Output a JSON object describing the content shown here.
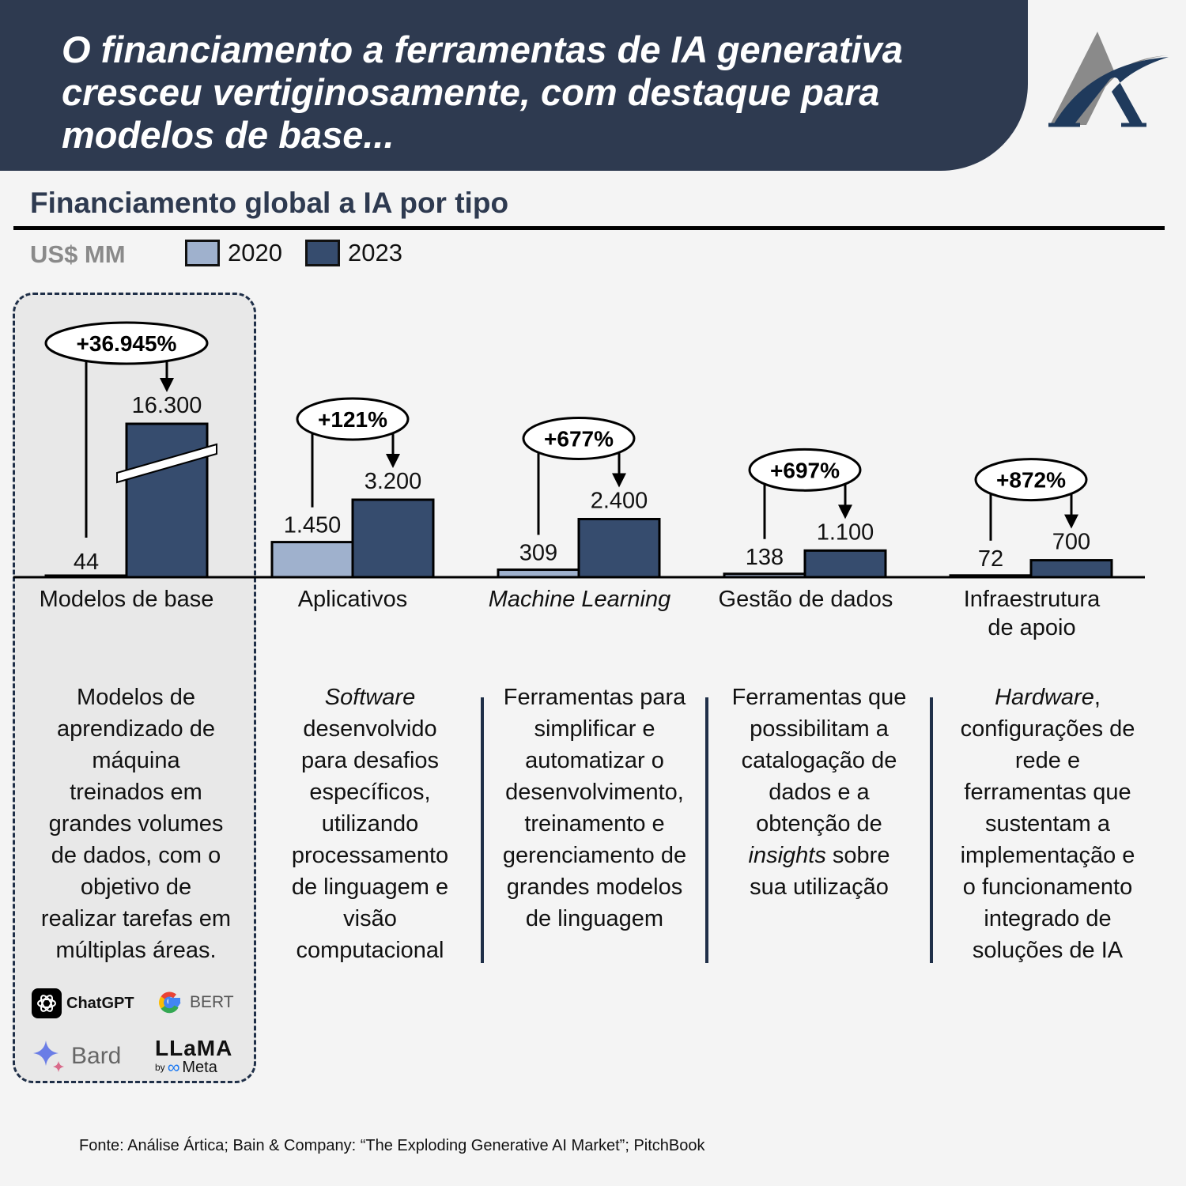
{
  "header": {
    "title": "O financiamento a ferramentas de IA generativa cresceu vertiginosamente, com destaque para modelos de base..."
  },
  "logo": {
    "name": "artica-logo-icon",
    "colors": {
      "primary": "#1f3a5c",
      "secondary": "#8a8a8a"
    }
  },
  "subtitle": "Financiamento global a IA por tipo",
  "unit": "US$ MM",
  "colors": {
    "c2020": "#9fb1cd",
    "c2023": "#364c6e",
    "header": "#2e3a50",
    "accent": "#1f2f48"
  },
  "chart_data": {
    "type": "bar",
    "title": "Financiamento global a IA por tipo",
    "ylabel": "US$ MM",
    "xlabel": "",
    "categories": [
      "Modelos de base",
      "Aplicativos",
      "Machine Learning",
      "Gestão de dados",
      "Infraestrutura de apoio"
    ],
    "series": [
      {
        "name": "2020",
        "values": [
          44,
          1450,
          309,
          138,
          72
        ]
      },
      {
        "name": "2023",
        "values": [
          16300,
          3200,
          2400,
          1100,
          700
        ]
      }
    ],
    "value_labels": {
      "2020": [
        "44",
        "1.450",
        "309",
        "138",
        "72"
      ],
      "2023": [
        "16.300",
        "3.200",
        "2.400",
        "1.100",
        "700"
      ]
    },
    "growth_labels": [
      "+36.945%",
      "+121%",
      "+677%",
      "+697%",
      "+872%"
    ],
    "axis_break": {
      "category": "Modelos de base",
      "series": "2023"
    },
    "legend": {
      "entries": [
        "2020",
        "2023"
      ],
      "position": "top-left"
    },
    "grid": false,
    "highlighted_category": "Modelos de base"
  },
  "categories_labels": [
    {
      "lines": [
        "Modelos de base"
      ],
      "italic": false
    },
    {
      "lines": [
        "Aplicativos"
      ],
      "italic": false
    },
    {
      "lines": [
        "Machine Learning"
      ],
      "italic": true
    },
    {
      "lines": [
        "Gestão de dados"
      ],
      "italic": false
    },
    {
      "lines": [
        "Infraestrutura",
        "de apoio"
      ],
      "italic": false
    }
  ],
  "descriptions": [
    [
      "Modelos de",
      "aprendizado de",
      "máquina",
      "treinados em",
      "grandes volumes",
      "de dados, com o",
      "objetivo de",
      "realizar tarefas em",
      "múltiplas áreas."
    ],
    [
      "Software",
      "desenvolvido",
      "para desafios",
      "específicos,",
      "utilizando",
      "processamento",
      "de linguagem e",
      "visão",
      "computacional"
    ],
    [
      "Ferramentas para",
      "simplificar e",
      "automatizar o",
      "desenvolvimento,",
      "treinamento e",
      "gerenciamento de",
      "grandes modelos",
      "de linguagem"
    ],
    [
      "Ferramentas que",
      "possibilitam a",
      "catalogação de",
      "dados e a",
      "obtenção de",
      "insights sobre",
      "sua utilização"
    ],
    [
      "Hardware,",
      "configurações de",
      "rede e",
      "ferramentas que",
      "sustentam a",
      "implementação e",
      "o funcionamento",
      "integrado de",
      "soluções de IA"
    ]
  ],
  "italic_words": {
    "1": {
      "0": "Software"
    },
    "3": {
      "5": "insights"
    },
    "4": {
      "0": "Hardware"
    }
  },
  "model_logos": [
    {
      "label": "ChatGPT",
      "icon": "openai-icon"
    },
    {
      "label": "BERT",
      "icon": "google-g-icon"
    },
    {
      "label": "Bard",
      "icon": "bard-sparkle-icon"
    },
    {
      "label": "LLaMA",
      "sublabel_by": "by",
      "sublabel": "Meta",
      "icon": "meta-infinity-icon"
    }
  ],
  "source": "Fonte: Análise Ártica; Bain & Company: “The Exploding Generative AI Market”; PitchBook"
}
